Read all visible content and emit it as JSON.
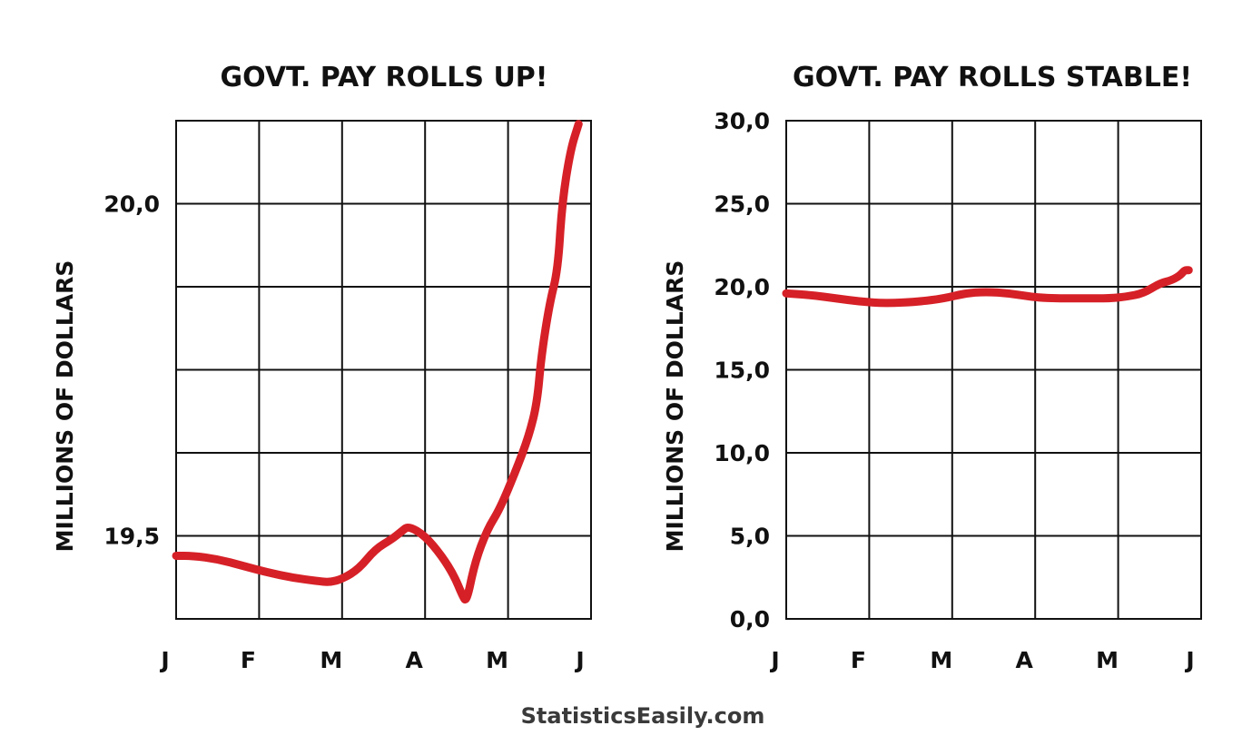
{
  "colors": {
    "line": "#d62027",
    "grid": "#111111",
    "credit": "#3a3a3a"
  },
  "credit": "StatisticsEasily.com",
  "chart_data": [
    {
      "type": "line",
      "title": "GOVT. PAY ROLLS UP!",
      "ylabel": "MILLIONS OF DOLLARS",
      "xlabel": "",
      "x_ticks": [
        "J",
        "F",
        "M",
        "A",
        "M",
        "J"
      ],
      "xlim": [
        0,
        5
      ],
      "ylim": [
        19.375,
        20.125
      ],
      "y_ticks": [
        {
          "value": 20.0,
          "label": "20,0"
        },
        {
          "value": 19.5,
          "label": "19,5"
        }
      ],
      "grid": true,
      "series": [
        {
          "x": [
            0.0,
            0.2,
            0.5,
            0.8,
            1.1,
            1.4,
            1.7,
            1.85,
            2.0,
            2.2,
            2.4,
            2.6,
            2.72,
            2.8,
            3.0,
            3.2,
            3.35,
            3.45,
            3.5,
            3.6,
            3.75,
            3.9,
            4.1,
            4.25,
            4.35,
            4.4,
            4.5,
            4.6,
            4.65,
            4.75,
            4.85
          ],
          "y": [
            19.47,
            19.47,
            19.465,
            19.455,
            19.445,
            19.437,
            19.432,
            19.43,
            19.435,
            19.45,
            19.48,
            19.495,
            19.507,
            19.515,
            19.5,
            19.47,
            19.44,
            19.41,
            19.4,
            19.46,
            19.51,
            19.54,
            19.6,
            19.65,
            19.7,
            19.77,
            19.85,
            19.9,
            20.0,
            20.08,
            20.12
          ]
        }
      ]
    },
    {
      "type": "line",
      "title": "GOVT. PAY ROLLS STABLE!",
      "ylabel": "MILLIONS OF DOLLARS",
      "xlabel": "",
      "x_ticks": [
        "J",
        "F",
        "M",
        "A",
        "M",
        "J"
      ],
      "xlim": [
        0,
        5
      ],
      "ylim": [
        0,
        30
      ],
      "y_ticks": [
        {
          "value": 30.0,
          "label": "30,0"
        },
        {
          "value": 25.0,
          "label": "25,0"
        },
        {
          "value": 20.0,
          "label": "20,0"
        },
        {
          "value": 15.0,
          "label": "15,0"
        },
        {
          "value": 10.0,
          "label": "10,0"
        },
        {
          "value": 5.0,
          "label": "5,0"
        },
        {
          "value": 0.0,
          "label": "0,0"
        }
      ],
      "grid": true,
      "series": [
        {
          "x": [
            0.0,
            0.3,
            0.6,
            0.9,
            1.2,
            1.6,
            1.9,
            2.15,
            2.4,
            2.7,
            3.0,
            3.3,
            3.6,
            3.9,
            4.1,
            4.3,
            4.5,
            4.65,
            4.75,
            4.8,
            4.85
          ],
          "y": [
            19.6,
            19.5,
            19.3,
            19.1,
            19.0,
            19.1,
            19.3,
            19.6,
            19.7,
            19.6,
            19.35,
            19.3,
            19.3,
            19.3,
            19.4,
            19.6,
            20.2,
            20.4,
            20.7,
            21.0,
            21.0
          ]
        }
      ]
    }
  ]
}
